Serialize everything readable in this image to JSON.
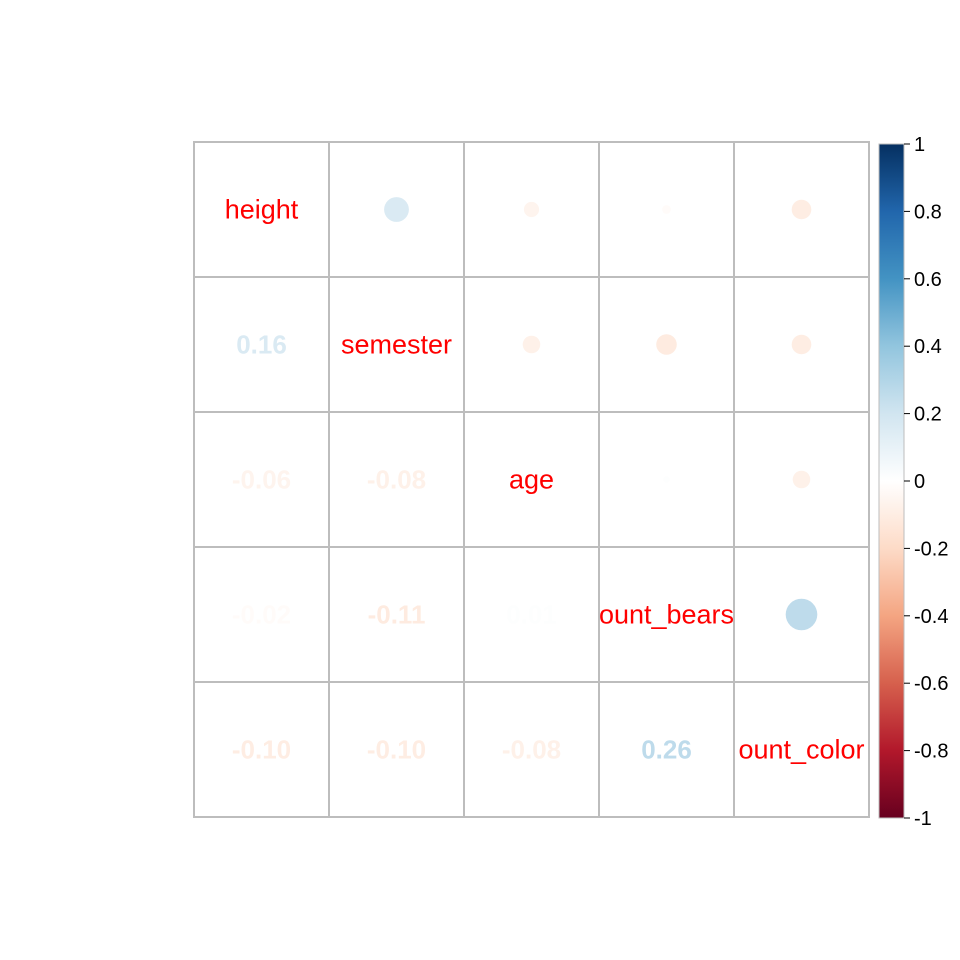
{
  "chart_data": {
    "type": "heatmap",
    "subtype": "correlation-matrix (upper: circles, lower: numbers)",
    "variables": [
      "height",
      "semester",
      "age",
      "ount_bears",
      "ount_color"
    ],
    "matrix": [
      [
        1.0,
        0.16,
        -0.06,
        -0.02,
        -0.1
      ],
      [
        0.16,
        1.0,
        -0.08,
        -0.11,
        -0.1
      ],
      [
        -0.06,
        -0.08,
        1.0,
        0.01,
        -0.08
      ],
      [
        -0.02,
        -0.11,
        0.01,
        1.0,
        0.26
      ],
      [
        -0.1,
        -0.1,
        -0.08,
        0.26,
        1.0
      ]
    ],
    "lower_labels": [
      {
        "row": 1,
        "col": 0,
        "text": "0.16"
      },
      {
        "row": 2,
        "col": 0,
        "text": "-0.06"
      },
      {
        "row": 2,
        "col": 1,
        "text": "-0.08"
      },
      {
        "row": 3,
        "col": 0,
        "text": "-0.02"
      },
      {
        "row": 3,
        "col": 1,
        "text": "-0.11"
      },
      {
        "row": 3,
        "col": 2,
        "text": "0.01"
      },
      {
        "row": 4,
        "col": 0,
        "text": "-0.10"
      },
      {
        "row": 4,
        "col": 1,
        "text": "-0.10"
      },
      {
        "row": 4,
        "col": 2,
        "text": "-0.08"
      },
      {
        "row": 4,
        "col": 3,
        "text": "0.26"
      }
    ],
    "colorbar": {
      "range": [
        -1,
        1
      ],
      "ticks": [
        "1",
        "0.8",
        "0.6",
        "0.4",
        "0.2",
        "0",
        "-0.2",
        "-0.4",
        "-0.6",
        "-0.8",
        "-1"
      ]
    },
    "colors": {
      "diag_label": "#ff0000",
      "grid": "#bdbdbd",
      "palette": [
        "#67001f",
        "#b2182b",
        "#d6604d",
        "#f4a582",
        "#fddbc7",
        "#ffffff",
        "#d1e5f0",
        "#92c5de",
        "#4393c3",
        "#2166ac",
        "#053061"
      ]
    }
  }
}
